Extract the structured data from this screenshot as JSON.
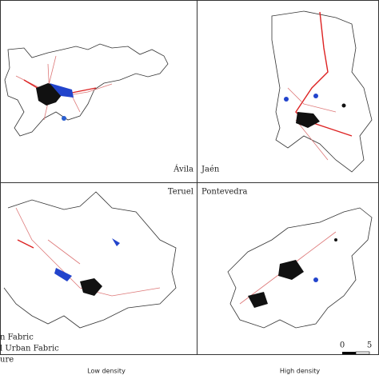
{
  "panels": [
    {
      "label": "Ávila"
    },
    {
      "label": "Jaén"
    },
    {
      "label": "Teruel"
    },
    {
      "label": "Pontevedra"
    }
  ],
  "legend": {
    "items": [
      "n Fabric",
      "l Urban Fabric",
      "ure"
    ]
  },
  "captions": [
    "Low density",
    "High density"
  ],
  "scale_bar": {
    "labels": [
      "0",
      "5"
    ]
  }
}
